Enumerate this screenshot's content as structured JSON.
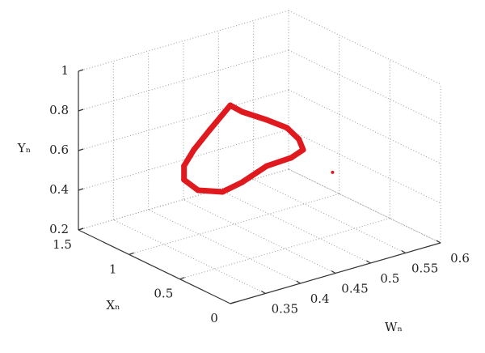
{
  "chart_data": {
    "type": "scatter3d",
    "x_label": "Xₙ",
    "y_label": "Yₙ",
    "z_label": "Wₙ",
    "xlim": [
      0,
      1.5
    ],
    "xticks": [
      0,
      0.5,
      1,
      1.5
    ],
    "ylim": [
      0.2,
      1
    ],
    "yticks": [
      0.2,
      0.4,
      0.6,
      0.8,
      1
    ],
    "zlim": [
      0.3,
      0.6
    ],
    "zticks": [
      0.35,
      0.4,
      0.45,
      0.5,
      0.55,
      0.6
    ],
    "grid": true,
    "series": [
      {
        "color": "#e0191f",
        "x": [
          0.9,
          0.9,
          0.9,
          0.9,
          0.9,
          0.9,
          0.9,
          0.9,
          0.9,
          0.9,
          0.9,
          0.9,
          0.9,
          0.9,
          0.9
        ],
        "z": [
          0.43,
          0.447,
          0.482,
          0.511,
          0.528,
          0.534,
          0.517,
          0.482,
          0.447,
          0.419,
          0.384,
          0.364,
          0.364,
          0.378,
          0.401
        ],
        "y": [
          0.844,
          0.794,
          0.718,
          0.648,
          0.573,
          0.514,
          0.491,
          0.485,
          0.439,
          0.419,
          0.463,
          0.536,
          0.606,
          0.673,
          0.751
        ]
      },
      {
        "color": "#e0191f",
        "x": [
          0.9
        ],
        "z": [
          0.576
        ],
        "y": [
          0.357
        ]
      }
    ]
  }
}
